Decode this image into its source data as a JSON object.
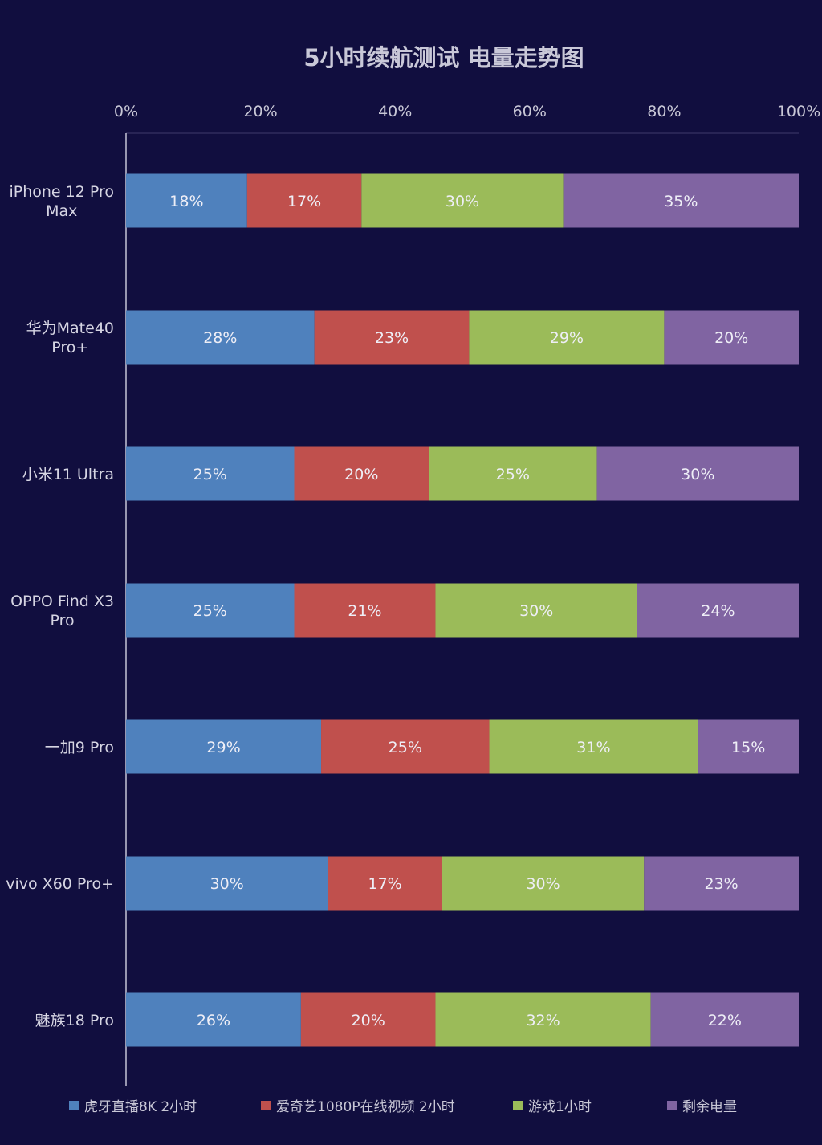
{
  "chart_data": {
    "type": "bar",
    "orientation": "horizontal",
    "stacked": "percent",
    "title": "5小时续航测试  电量走势图",
    "xlim": [
      0,
      100
    ],
    "x_ticks": [
      "0%",
      "20%",
      "40%",
      "60%",
      "80%",
      "100%"
    ],
    "categories": [
      [
        "iPhone 12 Pro",
        "Max"
      ],
      [
        "华为Mate40",
        "Pro+"
      ],
      [
        "小米11 Ultra"
      ],
      [
        "OPPO Find X3",
        "Pro"
      ],
      [
        "一加9 Pro"
      ],
      [
        "vivo X60 Pro+"
      ],
      [
        "魅族18 Pro"
      ]
    ],
    "series": [
      {
        "name": "虎牙直播8K  2小时",
        "color": "#4f81bd",
        "values": [
          18,
          28,
          25,
          25,
          29,
          30,
          26
        ]
      },
      {
        "name": "爱奇艺1080P在线视频 2小时",
        "color": "#c0504d",
        "values": [
          17,
          23,
          20,
          21,
          25,
          17,
          20
        ]
      },
      {
        "name": "游戏1小时",
        "color": "#9bbb59",
        "values": [
          30,
          29,
          25,
          30,
          31,
          30,
          32
        ]
      },
      {
        "name": "剩余电量",
        "color": "#8064a2",
        "values": [
          35,
          20,
          30,
          24,
          15,
          23,
          22
        ]
      }
    ],
    "value_suffix": "%",
    "legend_position": "bottom",
    "grid": false
  }
}
